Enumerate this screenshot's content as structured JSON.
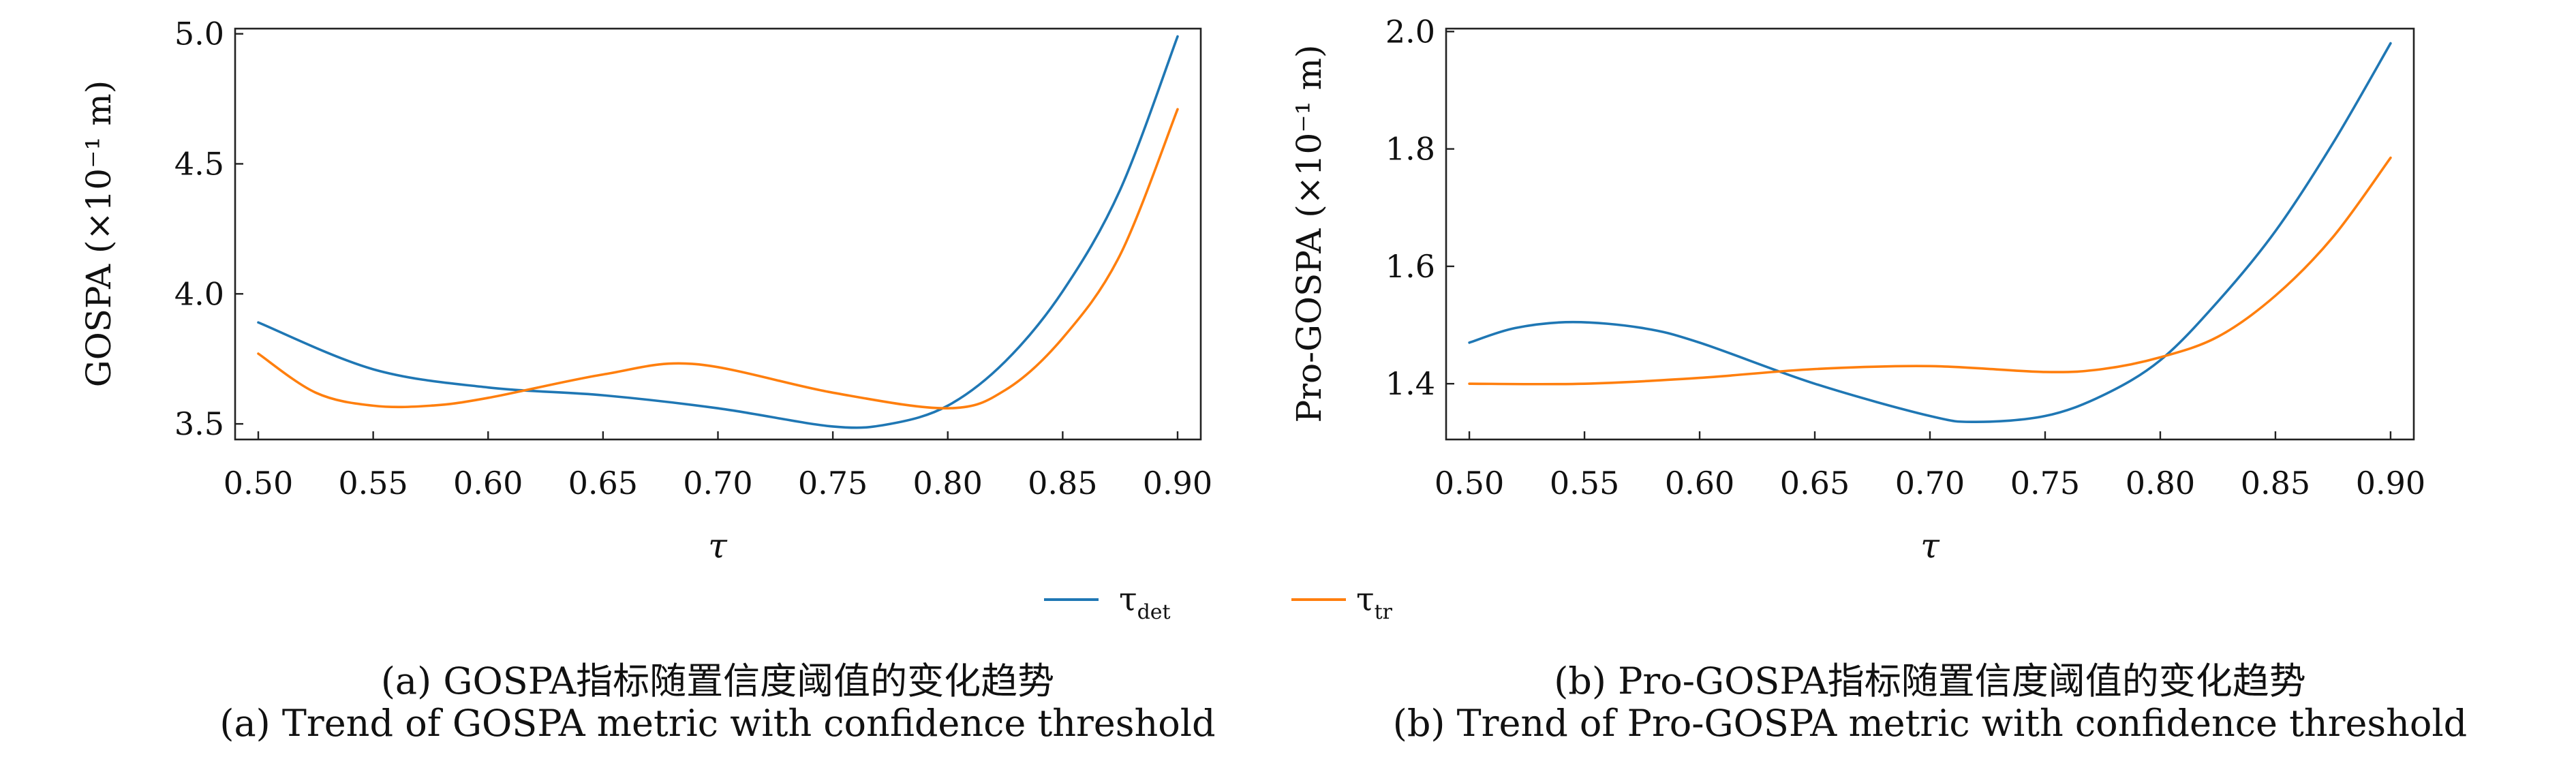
{
  "colors": {
    "det": "#1f77b4",
    "tr": "#ff7f0e"
  },
  "legend": {
    "symbol": "τ",
    "det_sub": "det",
    "tr_sub": "tr"
  },
  "chart_data": [
    {
      "type": "line",
      "xlabel": "τ",
      "ylabel": "GOSPA (×10⁻¹ m)",
      "xlim": [
        0.5,
        0.9
      ],
      "ylim": [
        3.44,
        5.02
      ],
      "xticks": [
        "0.50",
        "0.55",
        "0.60",
        "0.65",
        "0.70",
        "0.75",
        "0.80",
        "0.85",
        "0.90"
      ],
      "yticks": [
        "3.5",
        "4.0",
        "4.5",
        "5.0"
      ],
      "caption_zh": "(a) GOSPA指标随置信度阈值的变化趋势",
      "caption_en": "(a) Trend of GOSPA metric with confidence threshold",
      "series": [
        {
          "name": "τdet",
          "x": [
            0.5,
            0.55,
            0.6,
            0.65,
            0.7,
            0.75,
            0.775,
            0.8,
            0.825,
            0.85,
            0.875,
            0.9
          ],
          "y": [
            3.89,
            3.71,
            3.64,
            3.61,
            3.56,
            3.49,
            3.5,
            3.57,
            3.74,
            4.01,
            4.4,
            4.99
          ]
        },
        {
          "name": "τtr",
          "x": [
            0.5,
            0.525,
            0.55,
            0.575,
            0.6,
            0.65,
            0.69,
            0.75,
            0.8,
            0.825,
            0.85,
            0.875,
            0.9
          ],
          "y": [
            3.77,
            3.62,
            3.57,
            3.57,
            3.6,
            3.69,
            3.73,
            3.62,
            3.56,
            3.63,
            3.83,
            4.15,
            4.71
          ]
        }
      ]
    },
    {
      "type": "line",
      "xlabel": "τ",
      "ylabel": "Pro-GOSPA (×10⁻¹ m)",
      "xlim": [
        0.5,
        0.9
      ],
      "ylim": [
        1.305,
        2.005
      ],
      "xticks": [
        "0.50",
        "0.55",
        "0.60",
        "0.65",
        "0.70",
        "0.75",
        "0.80",
        "0.85",
        "0.90"
      ],
      "yticks": [
        "1.4",
        "1.6",
        "1.8",
        "2.0"
      ],
      "caption_zh": "(b) Pro-GOSPA指标随置信度阈值的变化趋势",
      "caption_en": "(b) Trend of Pro-GOSPA metric with confidence threshold",
      "series": [
        {
          "name": "τdet",
          "x": [
            0.5,
            0.52,
            0.545,
            0.575,
            0.6,
            0.65,
            0.7,
            0.72,
            0.75,
            0.775,
            0.8,
            0.825,
            0.85,
            0.875,
            0.9
          ],
          "y": [
            1.47,
            1.495,
            1.505,
            1.495,
            1.47,
            1.4,
            1.345,
            1.335,
            1.345,
            1.38,
            1.44,
            1.54,
            1.66,
            1.81,
            1.98
          ]
        },
        {
          "name": "τtr",
          "x": [
            0.5,
            0.55,
            0.6,
            0.65,
            0.7,
            0.75,
            0.775,
            0.8,
            0.825,
            0.85,
            0.875,
            0.9
          ],
          "y": [
            1.4,
            1.4,
            1.41,
            1.425,
            1.43,
            1.42,
            1.425,
            1.445,
            1.48,
            1.55,
            1.65,
            1.785
          ]
        }
      ]
    }
  ]
}
